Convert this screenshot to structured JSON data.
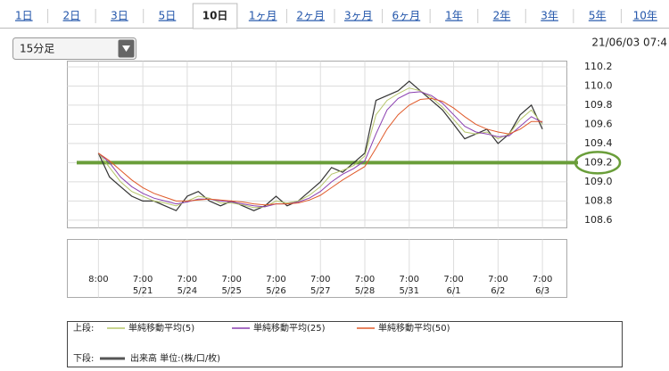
{
  "tabs": [
    "1日",
    "2日",
    "3日",
    "5日",
    "10日",
    "1ヶ月",
    "2ヶ月",
    "3ヶ月",
    "6ヶ月",
    "1年",
    "2年",
    "3年",
    "5年",
    "10年"
  ],
  "active_tab": 4,
  "dropdown": "15分足",
  "timestamp": "21/06/03 07:4",
  "chart_data": {
    "type": "line",
    "x": [
      0,
      0.25,
      0.5,
      0.75,
      1,
      1.25,
      1.5,
      1.75,
      2,
      2.25,
      2.5,
      2.75,
      3,
      3.25,
      3.5,
      3.75,
      4,
      4.25,
      4.5,
      4.75,
      5,
      5.25,
      5.5,
      5.75,
      6,
      6.25,
      6.5,
      6.75,
      7,
      7.25,
      7.5,
      7.75,
      8,
      8.25,
      8.5,
      8.75,
      9,
      9.25,
      9.5,
      9.75,
      10
    ],
    "series": [
      {
        "color": "#333333",
        "values": [
          109.3,
          109.05,
          108.95,
          108.85,
          108.8,
          108.8,
          108.75,
          108.7,
          108.85,
          108.9,
          108.8,
          108.75,
          108.8,
          108.75,
          108.7,
          108.75,
          108.85,
          108.75,
          108.8,
          108.9,
          109.0,
          109.15,
          109.1,
          109.2,
          109.3,
          109.85,
          109.9,
          109.95,
          110.05,
          109.95,
          109.85,
          109.75,
          109.6,
          109.45,
          109.5,
          109.55,
          109.4,
          109.5,
          109.7,
          109.8,
          109.55
        ]
      },
      {
        "name": "単純移動平均(5)",
        "color": "#b5c56a",
        "values": [
          109.3,
          109.15,
          109.0,
          108.9,
          108.85,
          108.8,
          108.78,
          108.75,
          108.8,
          108.85,
          108.83,
          108.78,
          108.78,
          108.76,
          108.73,
          108.74,
          108.8,
          108.78,
          108.8,
          108.86,
          108.95,
          109.08,
          109.12,
          109.17,
          109.27,
          109.7,
          109.85,
          109.92,
          109.98,
          109.95,
          109.88,
          109.78,
          109.65,
          109.52,
          109.5,
          109.52,
          109.45,
          109.5,
          109.65,
          109.75,
          109.6
        ]
      },
      {
        "name": "単純移動平均(25)",
        "color": "#8a3fb0",
        "values": [
          109.3,
          109.2,
          109.05,
          108.95,
          108.88,
          108.83,
          108.8,
          108.77,
          108.79,
          108.82,
          108.82,
          108.8,
          108.79,
          108.77,
          108.75,
          108.74,
          108.77,
          108.77,
          108.79,
          108.83,
          108.9,
          109.0,
          109.08,
          109.14,
          109.22,
          109.5,
          109.75,
          109.87,
          109.93,
          109.94,
          109.9,
          109.82,
          109.7,
          109.58,
          109.52,
          109.5,
          109.47,
          109.48,
          109.58,
          109.68,
          109.62
        ]
      },
      {
        "name": "単純移動平均(50)",
        "color": "#e05a2a",
        "values": [
          109.3,
          109.22,
          109.12,
          109.02,
          108.94,
          108.88,
          108.84,
          108.8,
          108.8,
          108.81,
          108.82,
          108.81,
          108.8,
          108.79,
          108.77,
          108.76,
          108.77,
          108.77,
          108.78,
          108.81,
          108.86,
          108.94,
          109.02,
          109.09,
          109.16,
          109.35,
          109.55,
          109.7,
          109.8,
          109.86,
          109.87,
          109.84,
          109.77,
          109.68,
          109.6,
          109.55,
          109.52,
          109.5,
          109.55,
          109.63,
          109.63
        ]
      }
    ],
    "xlim": [
      -0.7,
      10.55
    ],
    "ylim": [
      108.52,
      110.26
    ],
    "xticks": [
      {
        "value": 0,
        "label": "8:00"
      },
      {
        "value": 1,
        "label": "7:00"
      },
      {
        "value": 2,
        "label": "7:00"
      },
      {
        "value": 3,
        "label": "7:00"
      },
      {
        "value": 4,
        "label": "7:00"
      },
      {
        "value": 5,
        "label": "7:00"
      },
      {
        "value": 6,
        "label": "7:00"
      },
      {
        "value": 7,
        "label": "7:00"
      },
      {
        "value": 8,
        "label": "7:00"
      },
      {
        "value": 9,
        "label": "7:00"
      },
      {
        "value": 10,
        "label": "7:00"
      }
    ],
    "xtick_dates": [
      null,
      "5/21",
      "5/24",
      "5/25",
      "5/26",
      "5/27",
      "5/28",
      "5/31",
      "6/1",
      "6/2",
      "6/3"
    ],
    "yticks": [
      108.6,
      108.8,
      {
        "value": 109.0,
        "label": "109.0"
      },
      109.2,
      109.4,
      109.6,
      109.8,
      {
        "value": 110.0,
        "label": "110.0"
      },
      110.2
    ],
    "highlight_line": 109.2,
    "highlight_color": "#6a9e3a",
    "grid": true,
    "legend_upper": "上段:",
    "legend_lower": "下段:",
    "volume_label": "出来高 単位:(株/口/枚)"
  }
}
